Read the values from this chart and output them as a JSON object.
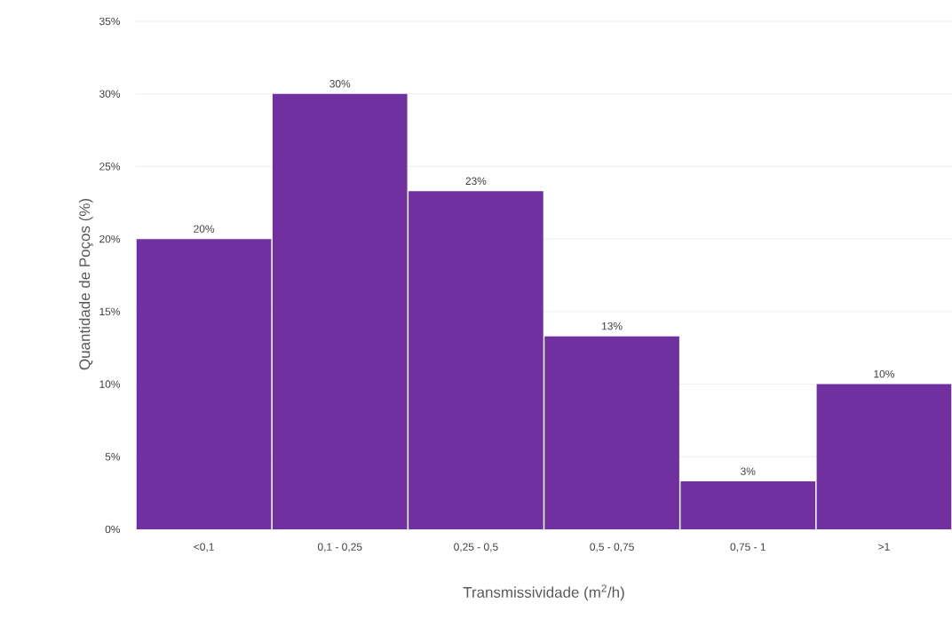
{
  "chart_data": {
    "type": "bar",
    "xlabel": "Transmissividade (m$^{2}$/h)",
    "ylabel": "Quantidade de Poços (%)",
    "categories": [
      "<0,1",
      "0,1 - 0,25",
      "0,25 - 0,5",
      "0,5 - 0,75",
      "0,75 - 1",
      ">1"
    ],
    "values": [
      20,
      30,
      23.3,
      13.3,
      3.3,
      10
    ],
    "value_labels": [
      "20%",
      "30%",
      "23%",
      "13%",
      "3%",
      "10%"
    ],
    "color": "#7030a0",
    "ylim": [
      0,
      35
    ],
    "yticks": [
      {
        "value": 0,
        "label": "0%"
      },
      {
        "value": 5,
        "label": "5%"
      },
      {
        "value": 10,
        "label": "10%"
      },
      {
        "value": 15,
        "label": "15%"
      },
      {
        "value": 20,
        "label": "20%"
      },
      {
        "value": 25,
        "label": "25%"
      },
      {
        "value": 30,
        "label": "30%"
      },
      {
        "value": 35,
        "label": "35%"
      }
    ],
    "grid": "y"
  }
}
